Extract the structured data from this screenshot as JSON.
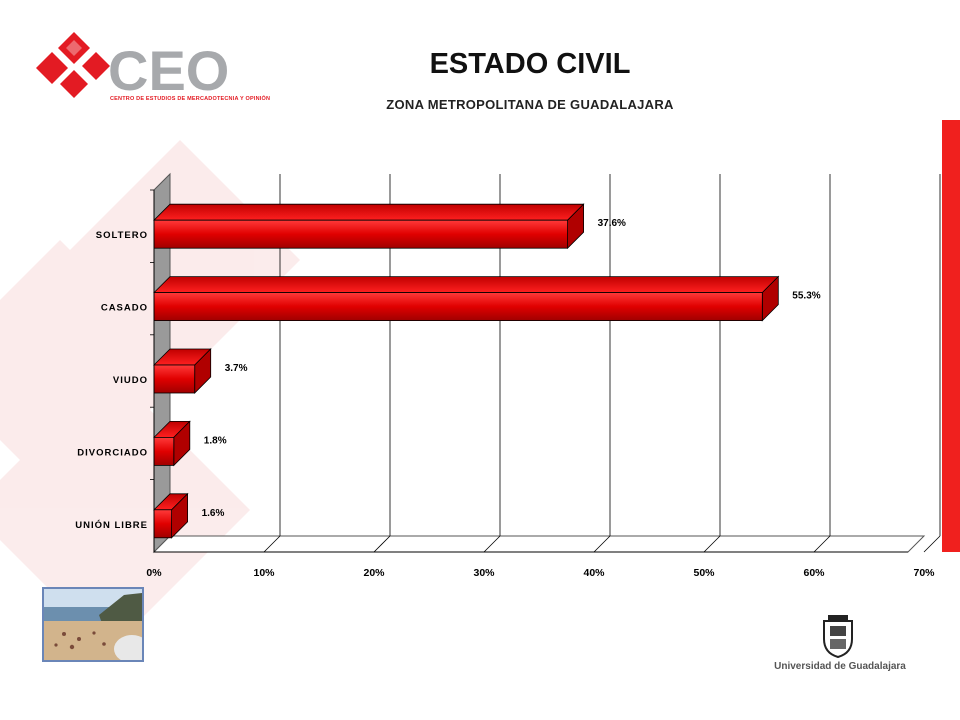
{
  "header": {
    "title": "ESTADO CIVIL",
    "subtitle": "ZONA METROPOLITANA DE GUADALAJARA"
  },
  "branding": {
    "logo_text": "CEO",
    "logo_tagline": "CENTRO DE ESTUDIOS DE MERCADOTECNIA Y OPINIÓN",
    "university": "Universidad de Guadalajara",
    "accent_color": "#e31b23"
  },
  "chart_data": {
    "type": "bar",
    "orientation": "horizontal",
    "style": "3d",
    "categories": [
      "SOLTERO",
      "CASADO",
      "VIUDO",
      "DIVORCIADO",
      "UNIÓN LIBRE"
    ],
    "values": [
      37.6,
      55.3,
      3.7,
      1.8,
      1.6
    ],
    "value_labels": [
      "37.6%",
      "55.3%",
      "3.7%",
      "1.8%",
      "1.6%"
    ],
    "x_ticks": [
      "0%",
      "10%",
      "20%",
      "30%",
      "40%",
      "50%",
      "60%",
      "70%"
    ],
    "xlim": [
      0,
      70
    ],
    "grid": true,
    "bar_color": "#e00000"
  }
}
